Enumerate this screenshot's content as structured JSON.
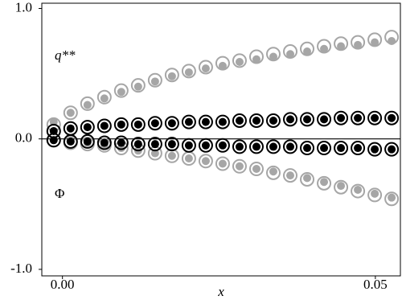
{
  "chart_data": {
    "type": "scatter",
    "x_label": "x",
    "annotations": [
      {
        "text": "q**"
      },
      {
        "text": "Φ"
      }
    ],
    "x": [
      -0.0014,
      0.0013,
      0.004,
      0.0067,
      0.0094,
      0.0121,
      0.0148,
      0.0175,
      0.0202,
      0.0229,
      0.0256,
      0.0283,
      0.031,
      0.0337,
      0.0364,
      0.0391,
      0.0418,
      0.0445,
      0.0472,
      0.0499,
      0.0526
    ],
    "series": [
      {
        "color": "#a6a6a6",
        "marker": "open",
        "values": [
          0.11,
          0.2,
          0.27,
          0.32,
          0.37,
          0.41,
          0.45,
          0.49,
          0.52,
          0.55,
          0.58,
          0.6,
          0.63,
          0.65,
          0.67,
          0.69,
          0.71,
          0.73,
          0.74,
          0.76,
          0.78
        ]
      },
      {
        "color": "#a6a6a6",
        "marker": "filled",
        "values": [
          0.13,
          0.2,
          0.26,
          0.31,
          0.36,
          0.4,
          0.44,
          0.48,
          0.51,
          0.54,
          0.56,
          0.59,
          0.61,
          0.63,
          0.65,
          0.67,
          0.69,
          0.71,
          0.72,
          0.74,
          0.75
        ]
      },
      {
        "color": "#a6a6a6",
        "marker": "open",
        "values": [
          -0.01,
          -0.03,
          -0.04,
          -0.05,
          -0.07,
          -0.09,
          -0.11,
          -0.13,
          -0.15,
          -0.17,
          -0.19,
          -0.21,
          -0.23,
          -0.26,
          -0.28,
          -0.31,
          -0.34,
          -0.37,
          -0.4,
          -0.43,
          -0.46
        ]
      },
      {
        "color": "#a6a6a6",
        "marker": "filled",
        "values": [
          -0.01,
          -0.02,
          -0.03,
          -0.05,
          -0.07,
          -0.09,
          -0.11,
          -0.13,
          -0.15,
          -0.17,
          -0.19,
          -0.21,
          -0.23,
          -0.25,
          -0.28,
          -0.3,
          -0.33,
          -0.36,
          -0.39,
          -0.42,
          -0.45
        ]
      },
      {
        "color": "#000000",
        "marker": "open",
        "values": [
          0.06,
          0.08,
          0.09,
          0.1,
          0.11,
          0.11,
          0.12,
          0.12,
          0.13,
          0.13,
          0.13,
          0.14,
          0.14,
          0.14,
          0.15,
          0.15,
          0.15,
          0.16,
          0.16,
          0.16,
          0.16
        ]
      },
      {
        "color": "#000000",
        "marker": "filled",
        "values": [
          0.06,
          0.08,
          0.09,
          0.1,
          0.11,
          0.11,
          0.12,
          0.12,
          0.13,
          0.13,
          0.13,
          0.14,
          0.14,
          0.14,
          0.15,
          0.15,
          0.15,
          0.16,
          0.16,
          0.16,
          0.16
        ]
      },
      {
        "color": "#000000",
        "marker": "open",
        "values": [
          -0.01,
          -0.02,
          -0.02,
          -0.03,
          -0.03,
          -0.04,
          -0.04,
          -0.04,
          -0.05,
          -0.05,
          -0.05,
          -0.06,
          -0.06,
          -0.06,
          -0.06,
          -0.07,
          -0.07,
          -0.07,
          -0.07,
          -0.08,
          -0.08
        ]
      },
      {
        "color": "#000000",
        "marker": "filled",
        "values": [
          -0.01,
          -0.02,
          -0.02,
          -0.03,
          -0.03,
          -0.04,
          -0.04,
          -0.04,
          -0.05,
          -0.05,
          -0.05,
          -0.06,
          -0.06,
          -0.06,
          -0.06,
          -0.07,
          -0.07,
          -0.07,
          -0.07,
          -0.08,
          -0.08
        ]
      }
    ],
    "xlim": [
      -0.0033,
      0.054
    ],
    "ylim": [
      -1.05,
      1.04
    ],
    "xticks": [
      {
        "value": 0,
        "label": "0.00"
      },
      {
        "value": 0.05,
        "label": "0.05"
      }
    ],
    "yticks": [
      {
        "value": 1,
        "label": "1.0"
      },
      {
        "value": 0,
        "label": "0.0"
      },
      {
        "value": -1,
        "label": "-1.0"
      }
    ],
    "zero_line": true
  }
}
